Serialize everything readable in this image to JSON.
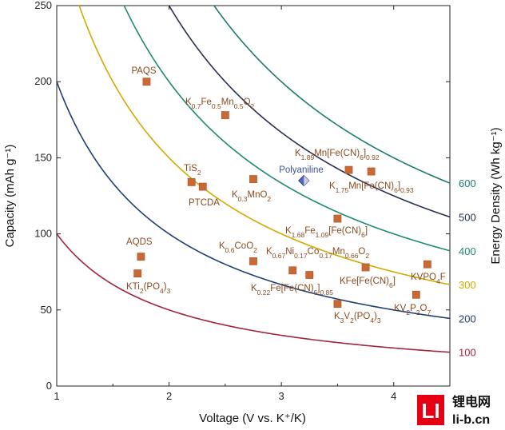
{
  "chart_data": {
    "type": "scatter",
    "xlabel": "Voltage (V vs. K⁺/K)",
    "ylabel": "Capacity (mAh g⁻¹)",
    "ylabel_right": "Energy Density (Wh kg⁻¹)",
    "xlim": [
      1,
      4.5
    ],
    "ylim": [
      0,
      250
    ],
    "xticks": [
      1,
      2,
      3,
      4
    ],
    "yticks": [
      0,
      50,
      100,
      150,
      200,
      250
    ],
    "energy_curves": [
      {
        "value": 100,
        "label": "100",
        "color": "#a3243b"
      },
      {
        "value": 200,
        "label": "200",
        "color": "#1f3f73"
      },
      {
        "value": 300,
        "label": "300",
        "color": "#d4a900"
      },
      {
        "value": 400,
        "label": "400",
        "color": "#1d8b72"
      },
      {
        "value": 500,
        "label": "500",
        "color": "#2a3050"
      },
      {
        "value": 600,
        "label": "600",
        "color": "#1d7a6e"
      }
    ],
    "points": [
      {
        "name": "PAQS",
        "x": 1.8,
        "y": 200,
        "marker": "square"
      },
      {
        "name": "K0.7Fe0.5Mn0.5O2",
        "x": 2.5,
        "y": 178,
        "marker": "square"
      },
      {
        "name": "K1.89Mn[Fe(CN)6]0.92",
        "x": 3.6,
        "y": 142,
        "marker": "square"
      },
      {
        "name": "K1.75Mn[Fe(CN)6]0.93",
        "x": 3.8,
        "y": 141,
        "marker": "square"
      },
      {
        "name": "Polyaniline",
        "x": 3.2,
        "y": 135,
        "marker": "diamond"
      },
      {
        "name": "TiS2",
        "x": 2.2,
        "y": 134,
        "marker": "square"
      },
      {
        "name": "PTCDA",
        "x": 2.3,
        "y": 131,
        "marker": "square"
      },
      {
        "name": "K0.3MnO2",
        "x": 2.75,
        "y": 136,
        "marker": "square"
      },
      {
        "name": "K1.68Fe1.09[Fe(CN)6]",
        "x": 3.5,
        "y": 110,
        "marker": "square"
      },
      {
        "name": "AQDS",
        "x": 1.75,
        "y": 85,
        "marker": "square"
      },
      {
        "name": "KTi2(PO4)3",
        "x": 1.72,
        "y": 74,
        "marker": "square"
      },
      {
        "name": "K0.6CoO2",
        "x": 2.75,
        "y": 82,
        "marker": "square"
      },
      {
        "name": "K0.67Ni0.17Co0.17Mn0.66O2",
        "x": 3.1,
        "y": 76,
        "marker": "square"
      },
      {
        "name": "K0.22Fe[Fe(CN)6]0.85",
        "x": 3.25,
        "y": 73,
        "marker": "square"
      },
      {
        "name": "KFe[Fe(CN)6]",
        "x": 3.75,
        "y": 78,
        "marker": "square"
      },
      {
        "name": "KVPO4F",
        "x": 4.3,
        "y": 80,
        "marker": "square"
      },
      {
        "name": "KVP2O7",
        "x": 4.2,
        "y": 60,
        "marker": "square"
      },
      {
        "name": "K3V2(PO4)3",
        "x": 3.5,
        "y": 54,
        "marker": "square"
      }
    ]
  },
  "watermark": {
    "brand": "锂电网",
    "site": "li-b.cn",
    "logo": "LI"
  }
}
